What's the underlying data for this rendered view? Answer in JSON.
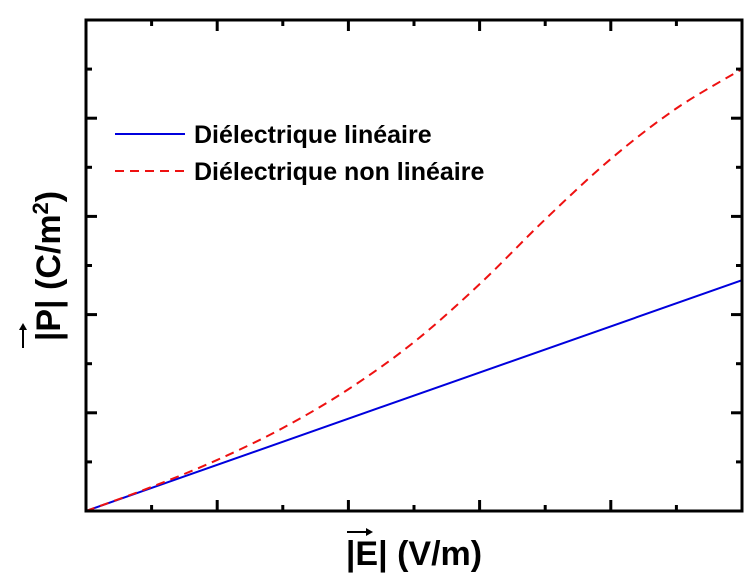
{
  "chart_data": {
    "type": "line",
    "title": "",
    "xlabel": "|E| (V/m)",
    "ylabel": "|P| (C/m2)",
    "xlim": [
      0,
      10
    ],
    "ylim": [
      0,
      10
    ],
    "tick_labels": "none",
    "grid": false,
    "legend_position": "top-left",
    "series": [
      {
        "name": "Diélectrique linéaire",
        "color": "#0000dd",
        "style": "solid",
        "x": [
          0,
          10
        ],
        "y": [
          0,
          4.7
        ]
      },
      {
        "name": "Diélectrique non linéaire",
        "color": "#ee1111",
        "style": "dashed",
        "x": [
          0,
          1,
          2,
          3,
          4,
          5,
          6,
          7,
          8,
          9,
          10
        ],
        "y": [
          0,
          0.49,
          1.04,
          1.69,
          2.48,
          3.44,
          4.62,
          5.94,
          7.17,
          8.2,
          9.0
        ]
      }
    ]
  }
}
